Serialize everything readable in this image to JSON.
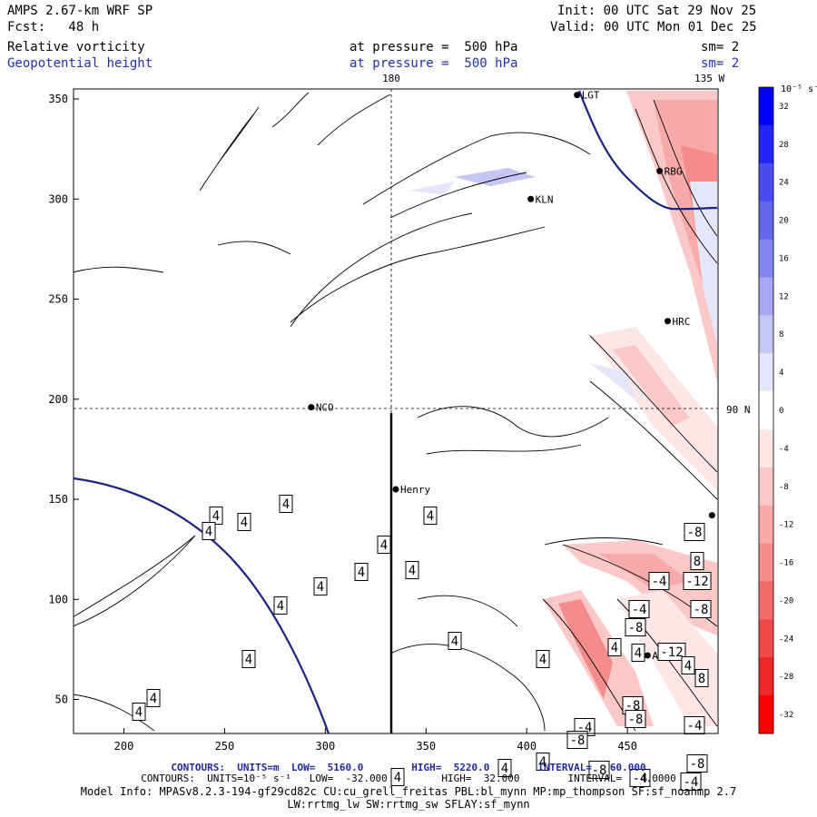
{
  "header": {
    "title": "AMPS 2.67-km WRF SP",
    "fcst": "Fcst:   48 h",
    "init": "Init: 00 UTC Sat 29 Nov 25",
    "valid": "Valid: 00 UTC Mon 01 Dec 25",
    "field1": "Relative vorticity",
    "field2": "Geopotential height",
    "pressure1": "at pressure =  500 hPa",
    "pressure2": "at pressure =  500 hPa",
    "sm1": "sm= 2",
    "sm2": "sm= 2"
  },
  "footer": {
    "line1": "CONTOURS:  UNITS=m  LOW=  5160.0        HIGH=  5220.0        INTERVAL=   60.000",
    "line2": "CONTOURS:  UNITS=10⁻⁵ s⁻¹   LOW=  -32.000         HIGH=  32.000        INTERVAL=   4.0000",
    "line3": "Model Info: MPASv8.2.3-194-gf29cd82c CU:cu_grell_freitas PBL:bl_mynn MP:mp_thompson SF:sf_noahmp 2.7",
    "line4": "LW:rrtmg_lw SW:rrtmg_sw SFLAY:sf_mynn"
  },
  "chart_data": {
    "type": "heatmap",
    "title": "Relative vorticity / Geopotential height at 500 hPa",
    "xlim": [
      175,
      495
    ],
    "ylim": [
      33,
      355
    ],
    "x_ticks": [
      200,
      250,
      300,
      350,
      400,
      450
    ],
    "y_ticks": [
      50,
      100,
      150,
      200,
      250,
      300,
      350
    ],
    "grid": {
      "lon_label": "180",
      "lon_x": 333,
      "lat_label": "90 N",
      "lat_y": 196,
      "top_right_label": "135 W"
    },
    "stations": [
      {
        "name": "LGT",
        "x": 425,
        "y": 352
      },
      {
        "name": "RBG",
        "x": 466,
        "y": 314
      },
      {
        "name": "KLN",
        "x": 402,
        "y": 300
      },
      {
        "name": "HRC",
        "x": 470,
        "y": 239
      },
      {
        "name": "NCO",
        "x": 293,
        "y": 196
      },
      {
        "name": "Henry",
        "x": 335,
        "y": 155
      },
      {
        "name": "AGZ",
        "x": 460,
        "y": 72
      },
      {
        "name": "",
        "x": 492,
        "y": 142
      }
    ],
    "contour_labels": [
      {
        "v": "4",
        "x": 315,
        "y": 345
      },
      {
        "v": "4",
        "x": 238,
        "y": 332
      },
      {
        "v": "4",
        "x": 269,
        "y": 325
      },
      {
        "v": "4",
        "x": 230,
        "y": 315
      },
      {
        "v": "4",
        "x": 423,
        "y": 300
      },
      {
        "v": "4",
        "x": 474,
        "y": 332
      },
      {
        "v": "4",
        "x": 454,
        "y": 272
      },
      {
        "v": "4",
        "x": 398,
        "y": 270
      },
      {
        "v": "4",
        "x": 353,
        "y": 254
      },
      {
        "v": "4",
        "x": 309,
        "y": 233
      },
      {
        "v": "4",
        "x": 501,
        "y": 194
      },
      {
        "v": "4",
        "x": 598,
        "y": 174
      },
      {
        "v": "4",
        "x": 274,
        "y": 174
      },
      {
        "v": "4",
        "x": 169,
        "y": 131
      },
      {
        "v": "4",
        "x": 153,
        "y": 116
      },
      {
        "v": "4",
        "x": 598,
        "y": 61
      },
      {
        "v": "4",
        "x": 556,
        "y": 54
      },
      {
        "v": "4",
        "x": 438,
        "y": 44
      },
      {
        "v": "-8",
        "x": 765,
        "y": 314
      },
      {
        "v": "8",
        "x": 768,
        "y": 282
      },
      {
        "v": "-4",
        "x": 726,
        "y": 260
      },
      {
        "v": "-12",
        "x": 768,
        "y": 260
      },
      {
        "v": "-4",
        "x": 704,
        "y": 229
      },
      {
        "v": "-8",
        "x": 772,
        "y": 229
      },
      {
        "v": "-8",
        "x": 700,
        "y": 209
      },
      {
        "v": "4",
        "x": 677,
        "y": 187
      },
      {
        "v": "-12",
        "x": 740,
        "y": 182
      },
      {
        "v": "4",
        "x": 703,
        "y": 181
      },
      {
        "v": "4",
        "x": 758,
        "y": 167
      },
      {
        "v": "8",
        "x": 773,
        "y": 153
      },
      {
        "v": "-8",
        "x": 697,
        "y": 123
      },
      {
        "v": "-4",
        "x": 644,
        "y": 99
      },
      {
        "v": "-8",
        "x": 700,
        "y": 108
      },
      {
        "v": "-4",
        "x": 765,
        "y": 101
      },
      {
        "v": "-8",
        "x": 636,
        "y": 85
      },
      {
        "v": "-8",
        "x": 768,
        "y": 59
      },
      {
        "v": "-8",
        "x": 660,
        "y": 52
      },
      {
        "v": "-4",
        "x": 705,
        "y": 43
      },
      {
        "v": "-4",
        "x": 761,
        "y": 39
      }
    ],
    "colorbar": {
      "unit": "10⁻⁵ s⁻¹",
      "ticks": [
        32,
        28,
        24,
        20,
        16,
        12,
        8,
        4,
        0,
        -4,
        -8,
        -12,
        -16,
        -20,
        -24,
        -28,
        -32
      ],
      "colors": [
        "#0000ff",
        "#2424f5",
        "#4a4aee",
        "#6666ec",
        "#8585ee",
        "#a6a6f2",
        "#c5c5f6",
        "#e6e6fb",
        "#ffffff",
        "#fde6e6",
        "#fbc8c8",
        "#f8aaaa",
        "#f58c8c",
        "#f26c6c",
        "#f04a4a",
        "#ee2828",
        "#ff0000"
      ]
    }
  }
}
